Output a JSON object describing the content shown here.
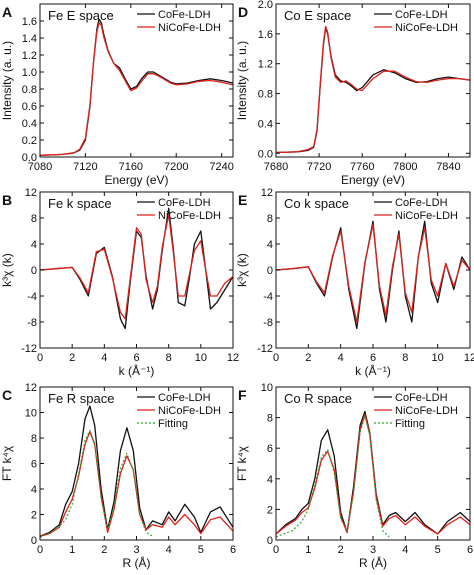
{
  "figure": {
    "panels": [
      {
        "letter": "A",
        "title": "Fe E space"
      },
      {
        "letter": "D",
        "title": "Co E space"
      },
      {
        "letter": "B",
        "title": "Fe k space"
      },
      {
        "letter": "E",
        "title": "Co k space"
      },
      {
        "letter": "C",
        "title": "Fe R space"
      },
      {
        "letter": "F",
        "title": "Co R space"
      }
    ]
  },
  "colors": {
    "CoFe-LDH": "#111111",
    "NiCoFe-LDH": "#e0201b",
    "Fitting": "#2ca02c"
  },
  "chart_data": [
    {
      "type": "line",
      "title": "Fe E space",
      "xlabel": "Energy (eV)",
      "ylabel": "Intensity (a. u.)",
      "xlim": [
        7080,
        7250
      ],
      "ylim": [
        0.0,
        1.8
      ],
      "xticks": [
        7080,
        7120,
        7160,
        7200,
        7240
      ],
      "yticks": [
        0.0,
        0.2,
        0.4,
        0.6,
        0.8,
        1.0,
        1.2,
        1.4,
        1.6
      ],
      "legend": "top-right",
      "series": [
        {
          "name": "CoFe-LDH",
          "x": [
            7080,
            7100,
            7110,
            7115,
            7120,
            7124,
            7127,
            7130,
            7132,
            7134,
            7136,
            7140,
            7145,
            7150,
            7155,
            7160,
            7165,
            7170,
            7175,
            7180,
            7185,
            7190,
            7195,
            7200,
            7210,
            7220,
            7230,
            7240,
            7250
          ],
          "y": [
            0.02,
            0.03,
            0.05,
            0.08,
            0.2,
            0.6,
            1.1,
            1.5,
            1.62,
            1.58,
            1.45,
            1.25,
            1.1,
            1.05,
            0.92,
            0.8,
            0.83,
            0.93,
            1.0,
            1.0,
            0.96,
            0.92,
            0.88,
            0.86,
            0.87,
            0.9,
            0.92,
            0.9,
            0.87
          ]
        },
        {
          "name": "NiCoFe-LDH",
          "x": [
            7080,
            7100,
            7110,
            7115,
            7120,
            7124,
            7127,
            7130,
            7132,
            7134,
            7136,
            7140,
            7145,
            7150,
            7155,
            7160,
            7165,
            7170,
            7175,
            7180,
            7185,
            7190,
            7195,
            7200,
            7210,
            7220,
            7230,
            7240,
            7250
          ],
          "y": [
            0.02,
            0.03,
            0.05,
            0.09,
            0.22,
            0.62,
            1.1,
            1.47,
            1.58,
            1.55,
            1.42,
            1.24,
            1.1,
            1.02,
            0.9,
            0.78,
            0.81,
            0.9,
            0.98,
            0.98,
            0.95,
            0.91,
            0.87,
            0.85,
            0.86,
            0.89,
            0.9,
            0.88,
            0.85
          ]
        }
      ]
    },
    {
      "type": "line",
      "title": "Co E space",
      "xlabel": "Energy (eV)",
      "ylabel": "Intensity (a. u.)",
      "xlim": [
        7680,
        7860
      ],
      "ylim": [
        -0.05,
        2.0
      ],
      "xticks": [
        7680,
        7720,
        7760,
        7800,
        7840
      ],
      "yticks": [
        0.0,
        0.4,
        0.8,
        1.2,
        1.6,
        2.0
      ],
      "legend": "top-right",
      "series": [
        {
          "name": "CoFe-LDH",
          "x": [
            7680,
            7700,
            7710,
            7715,
            7718,
            7721,
            7724,
            7726,
            7728,
            7731,
            7735,
            7740,
            7745,
            7750,
            7755,
            7760,
            7770,
            7780,
            7790,
            7800,
            7810,
            7820,
            7830,
            7840,
            7850,
            7860
          ],
          "y": [
            0.01,
            0.02,
            0.04,
            0.08,
            0.3,
            0.9,
            1.45,
            1.68,
            1.6,
            1.3,
            1.05,
            0.97,
            0.95,
            0.9,
            0.84,
            0.88,
            1.05,
            1.12,
            1.08,
            1.0,
            0.95,
            0.96,
            1.0,
            1.02,
            1.0,
            0.98
          ]
        },
        {
          "name": "NiCoFe-LDH",
          "x": [
            7680,
            7700,
            7710,
            7715,
            7718,
            7721,
            7724,
            7726,
            7728,
            7731,
            7735,
            7740,
            7745,
            7750,
            7755,
            7760,
            7770,
            7780,
            7790,
            7800,
            7810,
            7820,
            7830,
            7840,
            7850,
            7860
          ],
          "y": [
            0.01,
            0.02,
            0.05,
            0.09,
            0.32,
            0.92,
            1.48,
            1.7,
            1.62,
            1.28,
            1.02,
            0.95,
            0.97,
            0.92,
            0.86,
            0.84,
            1.0,
            1.1,
            1.1,
            1.02,
            0.96,
            0.95,
            0.98,
            1.0,
            1.0,
            0.98
          ]
        }
      ]
    },
    {
      "type": "line",
      "title": "Fe k space",
      "xlabel": "k (Å⁻¹)",
      "ylabel": "k³χ (k)",
      "xlim": [
        0,
        12
      ],
      "ylim": [
        -12,
        12
      ],
      "xticks": [
        0,
        2,
        4,
        6,
        8,
        10,
        12
      ],
      "yticks": [
        -12.0,
        -8.0,
        -4.0,
        0.0,
        4.0,
        8.0,
        12.0
      ],
      "legend": "top-right",
      "series": [
        {
          "name": "CoFe-LDH",
          "x": [
            0,
            1,
            2,
            2.5,
            3,
            3.5,
            4,
            4.5,
            5,
            5.3,
            5.6,
            6,
            6.3,
            6.6,
            7,
            7.3,
            7.6,
            8,
            8.3,
            8.6,
            9,
            9.3,
            9.6,
            10,
            10.3,
            10.6,
            11,
            11.5,
            12
          ],
          "y": [
            0,
            0.2,
            0.4,
            -1.5,
            -4,
            2.5,
            3.5,
            -1,
            -7.5,
            -9,
            -2,
            6,
            5,
            -1,
            -6,
            -3,
            3,
            9.5,
            3,
            -5,
            -5.5,
            -1,
            4,
            6,
            0,
            -6,
            -5,
            -3,
            -1
          ]
        },
        {
          "name": "NiCoFe-LDH",
          "x": [
            0,
            1,
            2,
            2.5,
            3,
            3.5,
            4,
            4.5,
            5,
            5.3,
            5.6,
            6,
            6.3,
            6.6,
            7,
            7.3,
            7.6,
            8,
            8.3,
            8.6,
            9,
            9.3,
            9.6,
            10,
            10.3,
            10.6,
            11,
            11.5,
            12
          ],
          "y": [
            0,
            0.2,
            0.4,
            -1.3,
            -3.5,
            2.8,
            3.2,
            -1.2,
            -6.5,
            -7.5,
            -1.5,
            6.5,
            5.5,
            -1.5,
            -5,
            -2.5,
            3.5,
            8.5,
            2.5,
            -4,
            -4,
            -0.5,
            3,
            4.5,
            0,
            -4,
            -4,
            -2,
            -1
          ]
        }
      ]
    },
    {
      "type": "line",
      "title": "Co k space",
      "xlabel": "k (Å⁻¹)",
      "ylabel": "k³χ (k)",
      "xlim": [
        0,
        12
      ],
      "ylim": [
        -12,
        12
      ],
      "xticks": [
        0,
        2,
        4,
        6,
        8,
        10,
        12
      ],
      "yticks": [
        -12.0,
        -8.0,
        -4.0,
        0.0,
        4.0,
        8.0,
        12.0
      ],
      "legend": "top-right",
      "series": [
        {
          "name": "CoFe-LDH",
          "x": [
            0,
            1,
            2,
            2.5,
            3,
            3.5,
            4,
            4.5,
            5,
            5.5,
            6,
            6.4,
            6.8,
            7.2,
            7.6,
            8,
            8.4,
            8.8,
            9.2,
            9.6,
            10,
            10.5,
            11,
            11.5,
            12
          ],
          "y": [
            0,
            0.2,
            0.5,
            -2,
            -4,
            2,
            6.5,
            -3,
            -9,
            1,
            7.5,
            -3,
            -8,
            0,
            6,
            -4,
            -8,
            2,
            7.5,
            -2,
            -5,
            1,
            -3,
            2,
            0
          ]
        },
        {
          "name": "NiCoFe-LDH",
          "x": [
            0,
            1,
            2,
            2.5,
            3,
            3.5,
            4,
            4.5,
            5,
            5.5,
            6,
            6.4,
            6.8,
            7.2,
            7.6,
            8,
            8.4,
            8.8,
            9.2,
            9.6,
            10,
            10.5,
            11,
            11.5,
            12
          ],
          "y": [
            0,
            0.2,
            0.5,
            -1.8,
            -3.5,
            2.2,
            6,
            -2.5,
            -8,
            1.2,
            7,
            -2.5,
            -7,
            0.5,
            5.5,
            -3.5,
            -6.5,
            2,
            6.5,
            -1.5,
            -4,
            1,
            -2.5,
            1.5,
            0
          ]
        }
      ]
    },
    {
      "type": "line",
      "title": "Fe R space",
      "xlabel": "R (Å)",
      "ylabel": "FT k⁴χ",
      "xlim": [
        0,
        6
      ],
      "ylim": [
        0,
        12
      ],
      "xticks": [
        0,
        1,
        2,
        3,
        4,
        5,
        6
      ],
      "yticks": [
        0,
        2,
        4,
        6,
        8,
        10,
        12
      ],
      "legend": "top-right",
      "series": [
        {
          "name": "CoFe-LDH",
          "x": [
            0,
            0.3,
            0.6,
            0.8,
            1.0,
            1.2,
            1.4,
            1.55,
            1.7,
            1.9,
            2.1,
            2.3,
            2.5,
            2.7,
            2.9,
            3.1,
            3.3,
            3.5,
            3.8,
            4.0,
            4.2,
            4.5,
            4.8,
            5.0,
            5.3,
            5.6,
            6.0
          ],
          "y": [
            0.3,
            0.6,
            1.2,
            2.8,
            3.8,
            6,
            9.5,
            10.5,
            9,
            4,
            0.8,
            3,
            7,
            8.8,
            7,
            2.5,
            0.8,
            1.5,
            1.2,
            2.2,
            1.5,
            2.8,
            1.8,
            0.6,
            2.2,
            2.6,
            1.0
          ]
        },
        {
          "name": "NiCoFe-LDH",
          "x": [
            0,
            0.3,
            0.6,
            0.8,
            1.0,
            1.2,
            1.4,
            1.55,
            1.7,
            1.9,
            2.1,
            2.3,
            2.5,
            2.7,
            2.9,
            3.1,
            3.3,
            3.5,
            3.8,
            4.0,
            4.2,
            4.5,
            4.8,
            5.0,
            5.3,
            5.6,
            6.0
          ],
          "y": [
            0.3,
            0.5,
            1.0,
            2.2,
            3.2,
            5,
            7.5,
            8.5,
            7.5,
            3.5,
            0.6,
            2.4,
            5.2,
            6.6,
            5.5,
            2,
            0.8,
            1.2,
            1.0,
            1.8,
            1.2,
            2.0,
            1.2,
            0.5,
            1.6,
            1.8,
            0.7
          ]
        },
        {
          "name": "Fitting",
          "x": [
            0,
            0.5,
            0.8,
            1.0,
            1.2,
            1.4,
            1.55,
            1.7,
            1.9,
            2.1,
            2.3,
            2.5,
            2.7,
            2.9,
            3.1,
            3.3,
            3.5
          ],
          "y": [
            0.2,
            0.8,
            1.6,
            2.8,
            5.2,
            7.8,
            8.6,
            7.6,
            3.2,
            0.8,
            2.6,
            5.6,
            6.8,
            5.4,
            2.0,
            0.6,
            0.3
          ]
        }
      ]
    },
    {
      "type": "line",
      "title": "Co R space",
      "xlabel": "R (Å)",
      "ylabel": "FT k⁴χ",
      "xlim": [
        0,
        6
      ],
      "ylim": [
        0,
        10
      ],
      "xticks": [
        0,
        1,
        2,
        3,
        4,
        5,
        6
      ],
      "yticks": [
        0,
        2,
        4,
        6,
        8,
        10
      ],
      "legend": "top-right",
      "series": [
        {
          "name": "CoFe-LDH",
          "x": [
            0,
            0.3,
            0.6,
            0.8,
            1.0,
            1.2,
            1.4,
            1.6,
            1.8,
            2.0,
            2.2,
            2.4,
            2.6,
            2.75,
            2.9,
            3.1,
            3.3,
            3.5,
            3.7,
            4.0,
            4.3,
            4.6,
            5.0,
            5.3,
            5.7,
            6.0
          ],
          "y": [
            0.4,
            1.0,
            1.4,
            2.0,
            2.4,
            4,
            6.5,
            7.2,
            5.5,
            1.8,
            0.5,
            3.5,
            7.5,
            8.4,
            7.0,
            3.0,
            1.0,
            1.6,
            1.8,
            1.2,
            1.8,
            1.0,
            0.4,
            1.2,
            1.8,
            1.2
          ]
        },
        {
          "name": "NiCoFe-LDH",
          "x": [
            0,
            0.3,
            0.6,
            0.8,
            1.0,
            1.2,
            1.4,
            1.6,
            1.8,
            2.0,
            2.2,
            2.4,
            2.6,
            2.75,
            2.9,
            3.1,
            3.3,
            3.5,
            3.7,
            4.0,
            4.3,
            4.6,
            5.0,
            5.3,
            5.7,
            6.0
          ],
          "y": [
            0.4,
            0.9,
            1.3,
            1.8,
            2.1,
            3.4,
            5.2,
            5.8,
            4.6,
            1.5,
            0.5,
            3.2,
            7.2,
            8.2,
            6.9,
            2.8,
            0.9,
            1.4,
            1.6,
            1.0,
            1.5,
            0.9,
            0.4,
            1.0,
            1.5,
            1.0
          ]
        },
        {
          "name": "Fitting",
          "x": [
            0,
            0.5,
            0.8,
            1.0,
            1.2,
            1.4,
            1.6,
            1.8,
            2.0,
            2.2,
            2.4,
            2.6,
            2.75,
            2.9,
            3.1,
            3.3,
            3.5
          ],
          "y": [
            0.2,
            0.6,
            1.2,
            2.0,
            3.6,
            5.4,
            5.9,
            4.4,
            1.4,
            0.6,
            3.0,
            7.0,
            8.1,
            6.8,
            2.6,
            0.6,
            0.2
          ]
        }
      ]
    }
  ]
}
